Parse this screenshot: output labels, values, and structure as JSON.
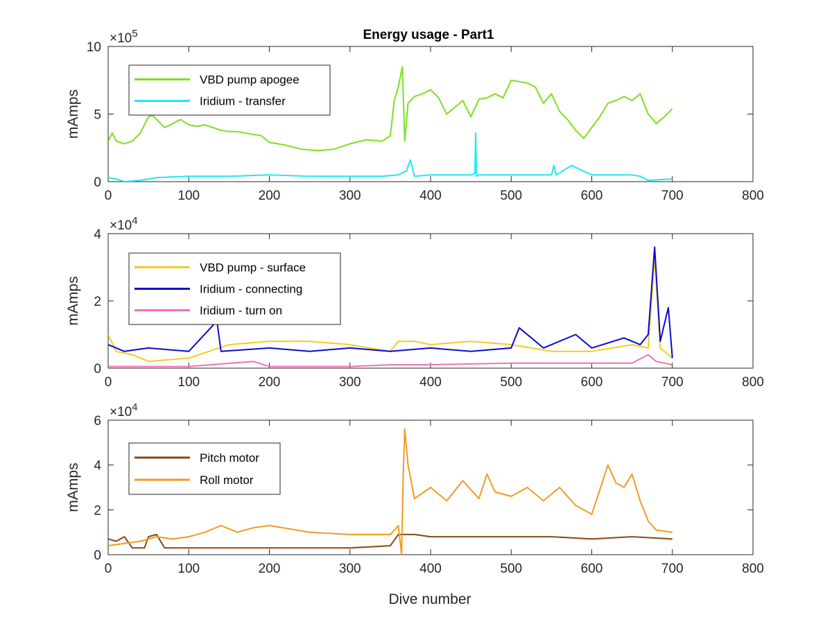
{
  "figure": {
    "title": "Energy usage - Part1",
    "xlabel": "Dive number"
  },
  "chart_data": [
    {
      "type": "line",
      "title": "Energy usage - Part1",
      "ylabel": "mAmps",
      "xlabel": "",
      "exponent_label": "×10",
      "exponent_power": "5",
      "xlim": [
        0,
        800
      ],
      "ylim": [
        0,
        10
      ],
      "xticks": [
        "0",
        "100",
        "200",
        "300",
        "400",
        "500",
        "600",
        "700",
        "800"
      ],
      "yticks": [
        "0",
        "5",
        "10"
      ],
      "ytick_values": [
        0,
        5,
        10
      ],
      "legend_position": "top-left",
      "series": [
        {
          "name": "VBD pump apogee",
          "color": "#7CE01E",
          "x": [
            0,
            5,
            10,
            20,
            30,
            40,
            50,
            55,
            60,
            70,
            80,
            90,
            100,
            110,
            120,
            130,
            140,
            150,
            160,
            170,
            180,
            190,
            200,
            220,
            240,
            260,
            280,
            300,
            320,
            340,
            350,
            355,
            360,
            365,
            368,
            372,
            380,
            390,
            400,
            410,
            420,
            430,
            440,
            450,
            460,
            470,
            480,
            490,
            500,
            510,
            520,
            530,
            540,
            550,
            560,
            570,
            580,
            590,
            600,
            610,
            620,
            630,
            640,
            650,
            660,
            670,
            680,
            690,
            700
          ],
          "y": [
            3.0,
            3.6,
            3.0,
            2.8,
            3.0,
            3.6,
            4.8,
            4.9,
            4.6,
            4.0,
            4.3,
            4.6,
            4.2,
            4.1,
            4.2,
            4.0,
            3.8,
            3.7,
            3.7,
            3.6,
            3.5,
            3.4,
            2.9,
            2.7,
            2.4,
            2.3,
            2.4,
            2.8,
            3.1,
            3.0,
            3.4,
            6.0,
            7.0,
            8.5,
            3.0,
            5.8,
            6.3,
            6.5,
            6.8,
            6.2,
            5.0,
            5.5,
            6.0,
            4.8,
            6.1,
            6.2,
            6.5,
            6.2,
            7.5,
            7.4,
            7.3,
            7.0,
            5.8,
            6.5,
            5.2,
            4.6,
            3.8,
            3.2,
            4.0,
            4.8,
            5.8,
            6.0,
            6.3,
            6.0,
            6.5,
            5.0,
            4.3,
            4.8,
            5.4
          ]
        },
        {
          "name": "Iridium - transfer",
          "color": "#1FE8F2",
          "x": [
            0,
            10,
            20,
            40,
            60,
            100,
            150,
            200,
            250,
            300,
            340,
            360,
            370,
            375,
            380,
            400,
            450,
            455,
            456,
            457,
            460,
            480,
            500,
            550,
            553,
            556,
            575,
            600,
            650,
            660,
            670,
            700
          ],
          "y": [
            0.3,
            0.2,
            0.0,
            0.1,
            0.3,
            0.4,
            0.4,
            0.5,
            0.4,
            0.4,
            0.4,
            0.5,
            0.8,
            1.6,
            0.4,
            0.5,
            0.5,
            0.6,
            3.6,
            0.4,
            0.5,
            0.5,
            0.5,
            0.5,
            1.2,
            0.5,
            1.2,
            0.5,
            0.5,
            0.4,
            0.1,
            0.2
          ]
        }
      ]
    },
    {
      "type": "line",
      "ylabel": "mAmps",
      "xlabel": "",
      "exponent_label": "×10",
      "exponent_power": "4",
      "xlim": [
        0,
        800
      ],
      "ylim": [
        0,
        4
      ],
      "xticks": [
        "0",
        "100",
        "200",
        "300",
        "400",
        "500",
        "600",
        "700",
        "800"
      ],
      "yticks": [
        "0",
        "2",
        "4"
      ],
      "ytick_values": [
        0,
        2,
        4
      ],
      "legend_position": "top-left",
      "series": [
        {
          "name": "VBD pump - surface",
          "color": "#F2CC1F",
          "x": [
            0,
            10,
            30,
            50,
            100,
            150,
            200,
            250,
            300,
            350,
            360,
            380,
            400,
            450,
            500,
            550,
            600,
            650,
            670,
            678,
            685,
            700
          ],
          "y": [
            1.0,
            0.5,
            0.4,
            0.2,
            0.3,
            0.7,
            0.8,
            0.8,
            0.7,
            0.5,
            0.8,
            0.8,
            0.7,
            0.8,
            0.7,
            0.5,
            0.5,
            0.7,
            0.6,
            3.3,
            0.6,
            0.3
          ]
        },
        {
          "name": "Iridium - connecting",
          "color": "#0A0ACC",
          "x": [
            0,
            20,
            50,
            100,
            135,
            140,
            200,
            250,
            300,
            350,
            400,
            450,
            500,
            510,
            540,
            580,
            600,
            640,
            660,
            670,
            678,
            685,
            695,
            700
          ],
          "y": [
            0.7,
            0.5,
            0.6,
            0.5,
            1.4,
            0.5,
            0.6,
            0.5,
            0.6,
            0.5,
            0.6,
            0.5,
            0.6,
            1.2,
            0.6,
            1.0,
            0.6,
            0.9,
            0.7,
            1.0,
            3.6,
            0.8,
            1.8,
            0.3
          ]
        },
        {
          "name": "Iridium - turn on",
          "color": "#F070B8",
          "x": [
            0,
            100,
            180,
            200,
            300,
            350,
            400,
            500,
            600,
            650,
            670,
            680,
            700
          ],
          "y": [
            0.05,
            0.05,
            0.2,
            0.05,
            0.05,
            0.1,
            0.1,
            0.15,
            0.15,
            0.15,
            0.4,
            0.2,
            0.1
          ]
        }
      ]
    },
    {
      "type": "line",
      "ylabel": "mAmps",
      "xlabel": "Dive number",
      "exponent_label": "×10",
      "exponent_power": "4",
      "xlim": [
        0,
        800
      ],
      "ylim": [
        0,
        6
      ],
      "xticks": [
        "0",
        "100",
        "200",
        "300",
        "400",
        "500",
        "600",
        "700",
        "800"
      ],
      "yticks": [
        "0",
        "2",
        "4",
        "6"
      ],
      "ytick_values": [
        0,
        2,
        4,
        6
      ],
      "legend_position": "top-left",
      "series": [
        {
          "name": "Pitch motor",
          "color": "#8B4513",
          "x": [
            0,
            10,
            20,
            30,
            45,
            50,
            60,
            70,
            100,
            200,
            300,
            350,
            360,
            380,
            400,
            450,
            500,
            550,
            600,
            650,
            700
          ],
          "y": [
            0.7,
            0.6,
            0.8,
            0.3,
            0.3,
            0.8,
            0.9,
            0.3,
            0.3,
            0.3,
            0.3,
            0.4,
            0.9,
            0.9,
            0.8,
            0.8,
            0.8,
            0.8,
            0.7,
            0.8,
            0.7
          ]
        },
        {
          "name": "Roll motor",
          "color": "#F29A1F",
          "x": [
            0,
            20,
            40,
            60,
            80,
            100,
            120,
            140,
            160,
            180,
            200,
            250,
            300,
            350,
            360,
            364,
            366,
            368,
            372,
            380,
            400,
            420,
            440,
            460,
            470,
            480,
            500,
            520,
            540,
            560,
            580,
            600,
            620,
            630,
            640,
            650,
            660,
            670,
            680,
            700
          ],
          "y": [
            0.4,
            0.5,
            0.6,
            0.8,
            0.7,
            0.8,
            1.0,
            1.3,
            1.0,
            1.2,
            1.3,
            1.0,
            0.9,
            0.9,
            1.3,
            0.0,
            3.5,
            5.6,
            4.0,
            2.5,
            3.0,
            2.4,
            3.3,
            2.5,
            3.6,
            2.8,
            2.6,
            3.0,
            2.4,
            3.0,
            2.2,
            1.8,
            4.0,
            3.2,
            3.0,
            3.6,
            2.4,
            1.5,
            1.1,
            1.0
          ]
        }
      ]
    }
  ]
}
